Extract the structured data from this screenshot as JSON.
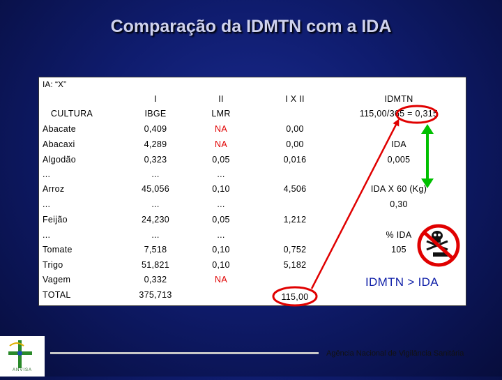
{
  "title": "Comparação da IDMTN com a IDA",
  "ia_label": "IA: “X”",
  "headers": {
    "row1": {
      "i": "I",
      "ii": "II",
      "ixii": "I X II",
      "idmtn": "IDMTN"
    },
    "row2": {
      "cultura": "CULTURA",
      "ibge": "IBGE",
      "lmr": "LMR",
      "calc": "115,00/365 = 0,315"
    }
  },
  "rows": [
    {
      "culture": "Abacate",
      "ibge": "0,409",
      "lmr": "NA",
      "prod": "0,00",
      "side": ""
    },
    {
      "culture": "Abacaxi",
      "ibge": "4,289",
      "lmr": "NA",
      "prod": "0,00",
      "side": "IDA"
    },
    {
      "culture": "Algodão",
      "ibge": "0,323",
      "lmr": "0,05",
      "prod": "0,016",
      "side": "0,005"
    },
    {
      "culture": "...",
      "ibge": "...",
      "lmr": "...",
      "prod": "",
      "side": ""
    },
    {
      "culture": "Arroz",
      "ibge": "45,056",
      "lmr": "0,10",
      "prod": "4,506",
      "side": "IDA X 60 (Kg)"
    },
    {
      "culture": "...",
      "ibge": "...",
      "lmr": "...",
      "prod": "",
      "side": "0,30"
    },
    {
      "culture": "Feijão",
      "ibge": "24,230",
      "lmr": "0,05",
      "prod": "1,212",
      "side": ""
    },
    {
      "culture": "...",
      "ibge": "...",
      "lmr": "...",
      "prod": "",
      "side": "% IDA"
    },
    {
      "culture": "Tomate",
      "ibge": "7,518",
      "lmr": "0,10",
      "prod": "0,752",
      "side": "105"
    },
    {
      "culture": "Trigo",
      "ibge": "51,821",
      "lmr": "0,10",
      "prod": "5,182",
      "side": ""
    },
    {
      "culture": "Vagem",
      "ibge": "0,332",
      "lmr": "NA",
      "prod": "",
      "side": ""
    },
    {
      "culture": "TOTAL",
      "ibge": "375,713",
      "lmr": "",
      "prod": "115,00",
      "side": ""
    }
  ],
  "conclusion": "IDMTN > IDA",
  "footer": "Agência Nacional de Vigilância Sanitária",
  "logo_text": "ANVISA",
  "colors": {
    "na": "#e00000",
    "oval": "#e00000",
    "arrow": "#00c000",
    "prohibited": "#e00000",
    "conclusion": "#1020a8"
  }
}
